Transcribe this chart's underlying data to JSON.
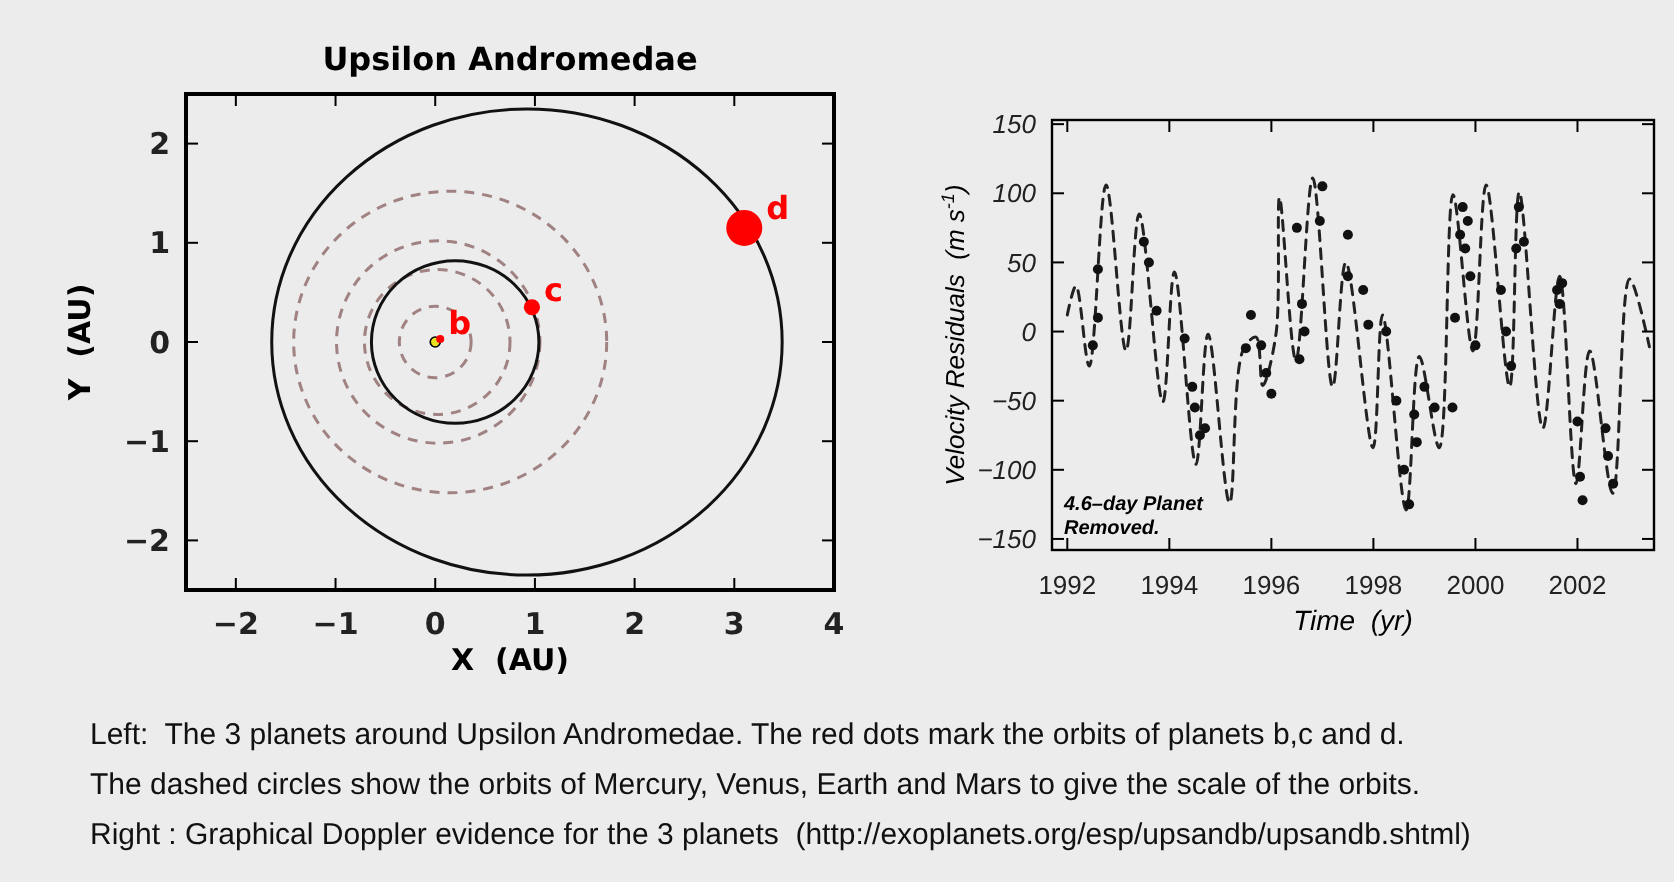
{
  "chart_data": [
    {
      "type": "scatter",
      "title": "Upsilon Andromedae",
      "xlabel": "X  (AU)",
      "ylabel": "Y  (AU)",
      "xlim": [
        -2.5,
        4
      ],
      "ylim": [
        -2.5,
        2.5
      ],
      "xticks": [
        -2,
        -1,
        0,
        1,
        2,
        3,
        4
      ],
      "yticks": [
        -2,
        -1,
        0,
        1,
        2
      ],
      "grid": false,
      "legend": false,
      "series": [
        {
          "type": "scatter",
          "marker": "circle",
          "color": "#e8e020",
          "x": [
            0
          ],
          "values": [
            0
          ]
        },
        {
          "type": "bubble",
          "name": "b",
          "color": "#ff0000",
          "x": [
            0.05
          ],
          "values": [
            0.03
          ],
          "sizes": [
            0.05
          ]
        },
        {
          "type": "bubble",
          "name": "c",
          "color": "#ff0000",
          "x": [
            0.97
          ],
          "values": [
            0.35
          ],
          "sizes": [
            0.2
          ]
        },
        {
          "type": "bubble",
          "name": "d",
          "color": "#ff0000",
          "x": [
            3.1
          ],
          "values": [
            1.15
          ],
          "sizes": [
            1
          ]
        }
      ]
    },
    {
      "type": "line",
      "xlabel": "Time  (yr)",
      "ylabel": "Velocity Residuals  (m s$^{-1}$)",
      "xlim": [
        1991.7,
        2003.5
      ],
      "ylim": [
        -158,
        153
      ],
      "xticks": [
        1992,
        1994,
        1996,
        1998,
        2000,
        2002
      ],
      "yticks": [
        -150,
        -100,
        -50,
        0,
        50,
        100,
        150
      ],
      "grid": false,
      "legend": false,
      "annotations": [
        "4.6–day Planet\nRemoved."
      ],
      "series": [
        {
          "type": "line",
          "line_style": "dashed",
          "color": "#222222",
          "x": [
            1992.0,
            1992.17,
            1992.43,
            1992.76,
            1993.15,
            1993.41,
            1993.87,
            1994.1,
            1994.52,
            1994.76,
            1995.18,
            1995.44,
            1995.7,
            1995.83,
            1996.09,
            1996.16,
            1996.48,
            1996.81,
            1997.2,
            1997.46,
            1997.99,
            1998.18,
            1998.64,
            1998.9,
            1999.29,
            1999.56,
            1999.95,
            2000.21,
            2000.67,
            2000.86,
            2001.32,
            2001.65,
            2001.97,
            2002.24,
            2002.69,
            2003.02,
            2003.41
          ],
          "values": [
            12,
            33,
            -25,
            106,
            -14,
            85,
            -51,
            43,
            -96,
            -2,
            -124,
            -14,
            -4,
            -39,
            -2,
            97,
            -21,
            111,
            -40,
            50,
            -84,
            12,
            -129,
            -18,
            -84,
            99,
            -14,
            106,
            -40,
            101,
            -70,
            40,
            -110,
            -14,
            -117,
            38,
            -11
          ]
        },
        {
          "type": "scatter",
          "marker": "circle",
          "color": "#111111",
          "x": [
            1992.6,
            1992.5,
            1992.6,
            1993.5,
            1993.6,
            1993.75,
            1994.3,
            1994.45,
            1994.5,
            1994.6,
            1994.7,
            1995.5,
            1995.6,
            1995.8,
            1995.9,
            1996.0,
            1996.5,
            1996.55,
            1996.6,
            1996.65,
            1996.95,
            1997.0,
            1997.5,
            1997.5,
            1997.8,
            1997.9,
            1998.25,
            1998.45,
            1998.6,
            1998.7,
            1998.85,
            1998.8,
            1999.0,
            1999.2,
            1999.55,
            1999.6,
            1999.7,
            1999.75,
            1999.8,
            1999.85,
            1999.9,
            2000.0,
            2000.5,
            2000.6,
            2000.7,
            2000.8,
            2000.85,
            2000.95,
            2001.6,
            2001.65,
            2001.7,
            2002.0,
            2002.05,
            2002.1,
            2002.55,
            2002.6,
            2002.7
          ],
          "values": [
            45,
            -10,
            10,
            65,
            50,
            15,
            -5,
            -40,
            -55,
            -75,
            -70,
            -12,
            12,
            -10,
            -30,
            -45,
            75,
            -20,
            20,
            0,
            80,
            105,
            70,
            40,
            30,
            5,
            0,
            -50,
            -100,
            -125,
            -80,
            -60,
            -40,
            -55,
            -55,
            10,
            70,
            90,
            60,
            80,
            40,
            -10,
            30,
            0,
            -25,
            60,
            90,
            65,
            30,
            20,
            35,
            -65,
            -105,
            -122,
            -70,
            -90,
            -110
          ]
        }
      ]
    },
    {
      "type": "other",
      "annotations": [
        "Left:  The 3 planets around Upsilon Andromedae. The red dots mark the orbits of planets b,c and d.",
        "The dashed circles show the orbits of Mercury, Venus, Earth and Mars to give the scale of the orbits.",
        "Right : Graphical Doppler evidence for the 3 planets  (http://exoplanets.org/esp/upsandb/upsandb.shtml)"
      ]
    }
  ]
}
